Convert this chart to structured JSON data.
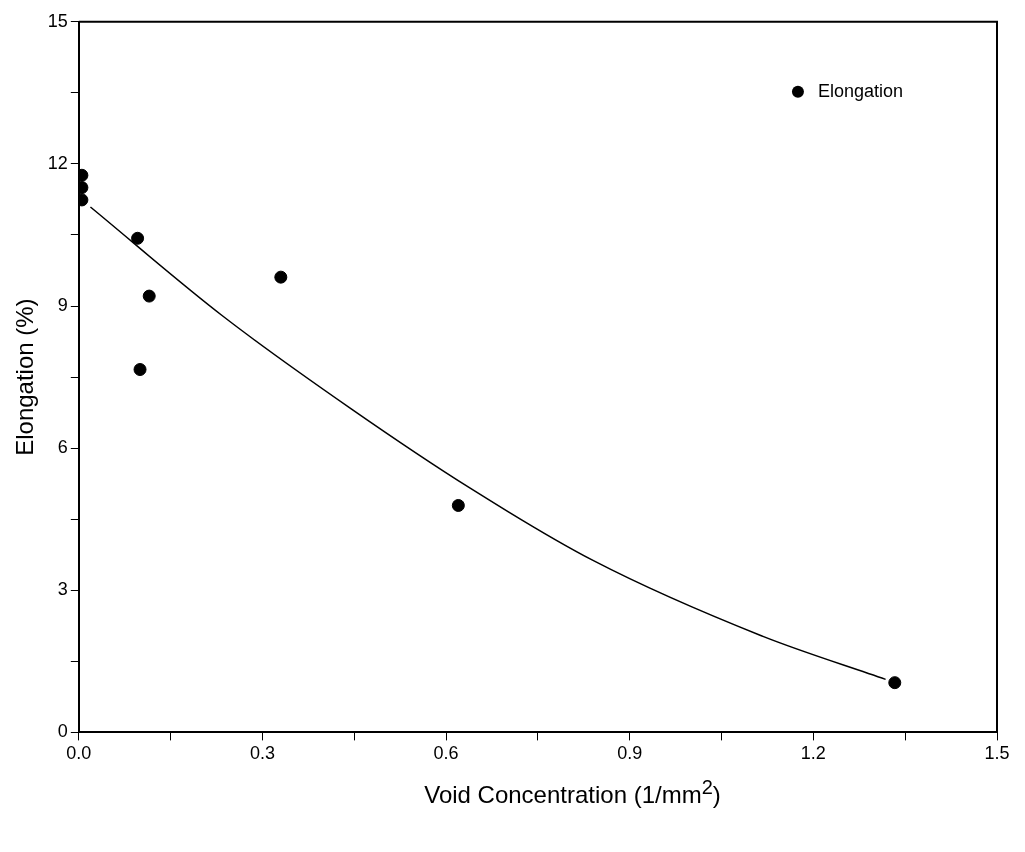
{
  "chart_data": {
    "type": "scatter",
    "xlabel": "Void Concentration (1/mm$^{2}$)",
    "ylabel": "Elongation (%)",
    "xlim": [
      0,
      1.5
    ],
    "xticks": [
      {
        "value": 0,
        "label": "0.0"
      },
      {
        "value": 0.15,
        "label": null
      },
      0.3,
      {
        "value": 0.45,
        "label": null
      },
      0.6,
      {
        "value": 0.75,
        "label": null
      },
      0.9,
      {
        "value": 1.05,
        "label": null
      },
      1.2,
      {
        "value": 1.35,
        "label": null
      },
      1.5
    ],
    "ylim": [
      0,
      15
    ],
    "yticks": [
      0,
      {
        "value": 1.5,
        "label": null
      },
      3,
      {
        "value": 4.5,
        "label": null
      },
      6,
      {
        "value": 7.5,
        "label": null
      },
      9,
      {
        "value": 10.5,
        "label": null
      },
      12,
      {
        "value": 13.5,
        "label": null
      },
      15
    ],
    "grid": false,
    "legend": "top right",
    "marker": "circle",
    "series": [
      {
        "name": "Elongation",
        "color": "#000000",
        "x": [
          0.005,
          0.005,
          0.005,
          0.096,
          0.115,
          0.1,
          0.33,
          0.62,
          1.333
        ],
        "values": [
          11.76,
          11.5,
          11.24,
          10.43,
          9.21,
          7.66,
          9.61,
          4.79,
          1.05
        ]
      },
      {
        "type": "line",
        "color": "#000000",
        "marker": "none",
        "line_style": "solid",
        "x": [
          0.019,
          0.234,
          0.445,
          0.64,
          0.84,
          1.115,
          1.318
        ],
        "values": [
          11.09,
          8.8,
          6.83,
          5.15,
          3.63,
          2.04,
          1.12
        ]
      }
    ]
  }
}
